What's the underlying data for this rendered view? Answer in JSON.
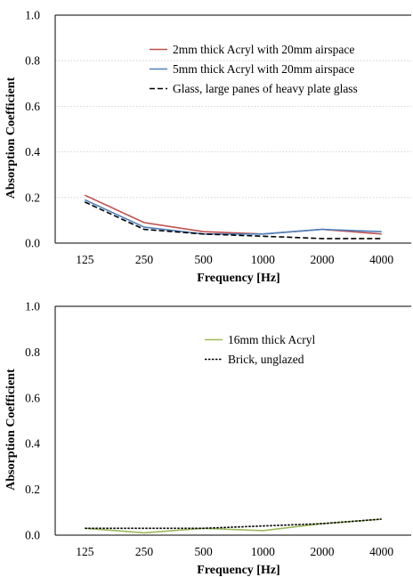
{
  "chart_data": [
    {
      "type": "line",
      "title": "",
      "categories": [
        "125",
        "250",
        "500",
        "1000",
        "2000",
        "4000"
      ],
      "xlabel": "Frequency [Hz]",
      "ylabel": "Absorption Coefficient",
      "ylim": [
        0,
        1.0
      ],
      "yticks": [
        "0.0",
        "0.2",
        "0.4",
        "0.6",
        "0.8",
        "1.0"
      ],
      "grid": true,
      "legend_position": "top-right",
      "series": [
        {
          "name": "2mm thick Acryl with 20mm airspace",
          "values": [
            0.21,
            0.09,
            0.05,
            0.04,
            0.06,
            0.04
          ],
          "color": "#c0504d",
          "style": "solid"
        },
        {
          "name": "5mm thick Acryl with 20mm airspace",
          "values": [
            0.19,
            0.07,
            0.04,
            0.04,
            0.06,
            0.05
          ],
          "color": "#4f81bd",
          "style": "solid"
        },
        {
          "name": "Glass, large panes of heavy plate glass",
          "values": [
            0.18,
            0.06,
            0.04,
            0.03,
            0.02,
            0.02
          ],
          "color": "#000000",
          "style": "dashed"
        }
      ]
    },
    {
      "type": "line",
      "title": "",
      "categories": [
        "125",
        "250",
        "500",
        "1000",
        "2000",
        "4000"
      ],
      "xlabel": "Frequency [Hz]",
      "ylabel": "Absorption Coefficient",
      "ylim": [
        0,
        1.0
      ],
      "yticks": [
        "0.0",
        "0.2",
        "0.4",
        "0.6",
        "0.8",
        "1.0"
      ],
      "grid": false,
      "legend_position": "top-right",
      "series": [
        {
          "name": "16mm thick Acryl",
          "values": [
            0.03,
            0.01,
            0.03,
            0.02,
            0.05,
            0.07
          ],
          "color": "#9bbb59",
          "style": "solid"
        },
        {
          "name": "Brick, unglazed",
          "values": [
            0.03,
            0.03,
            0.03,
            0.04,
            0.05,
            0.07
          ],
          "color": "#000000",
          "style": "dotted"
        }
      ]
    }
  ]
}
